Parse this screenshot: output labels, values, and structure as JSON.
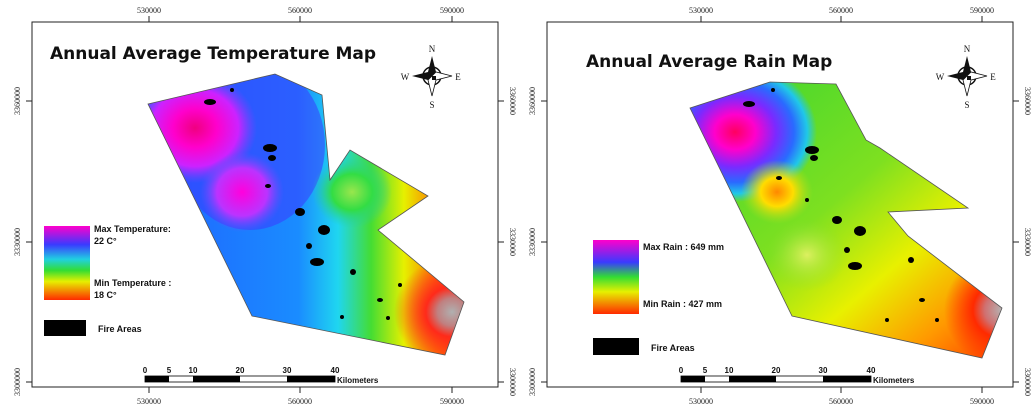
{
  "maps": [
    {
      "title": "Annual Average Temperature Map",
      "x_ticks": [
        "530000",
        "560000",
        "590000"
      ],
      "y_ticks": [
        "3360000",
        "3330000",
        "3300000"
      ],
      "legend_max": [
        "Max Temperature:",
        "22 C°"
      ],
      "legend_min": [
        "Min Temperature :",
        "18 C°"
      ],
      "fire_label": "Fire Areas",
      "scale_numbers": [
        "0",
        "5",
        "10",
        "20",
        "30",
        "40"
      ],
      "scale_unit": "Kilometers",
      "compass": {
        "n": "N",
        "s": "S",
        "e": "E",
        "w": "W"
      }
    },
    {
      "title": "Annual Average Rain Map",
      "x_ticks": [
        "530000",
        "560000",
        "590000"
      ],
      "y_ticks": [
        "3360000",
        "3330000",
        "3300000"
      ],
      "legend_max": [
        "Max Rain : 649 mm"
      ],
      "legend_min": [
        "Min Rain : 427 mm"
      ],
      "fire_label": "Fire Areas",
      "scale_numbers": [
        "0",
        "5",
        "10",
        "20",
        "30",
        "40"
      ],
      "scale_unit": "Kilometers",
      "compass": {
        "n": "N",
        "s": "S",
        "e": "E",
        "w": "W"
      }
    }
  ],
  "colors": {
    "max": "#e600e6",
    "high": "#2a2aff",
    "mid": "#33e033",
    "low": "#ffee00",
    "min": "#ff2a00",
    "fire": "#000000"
  }
}
